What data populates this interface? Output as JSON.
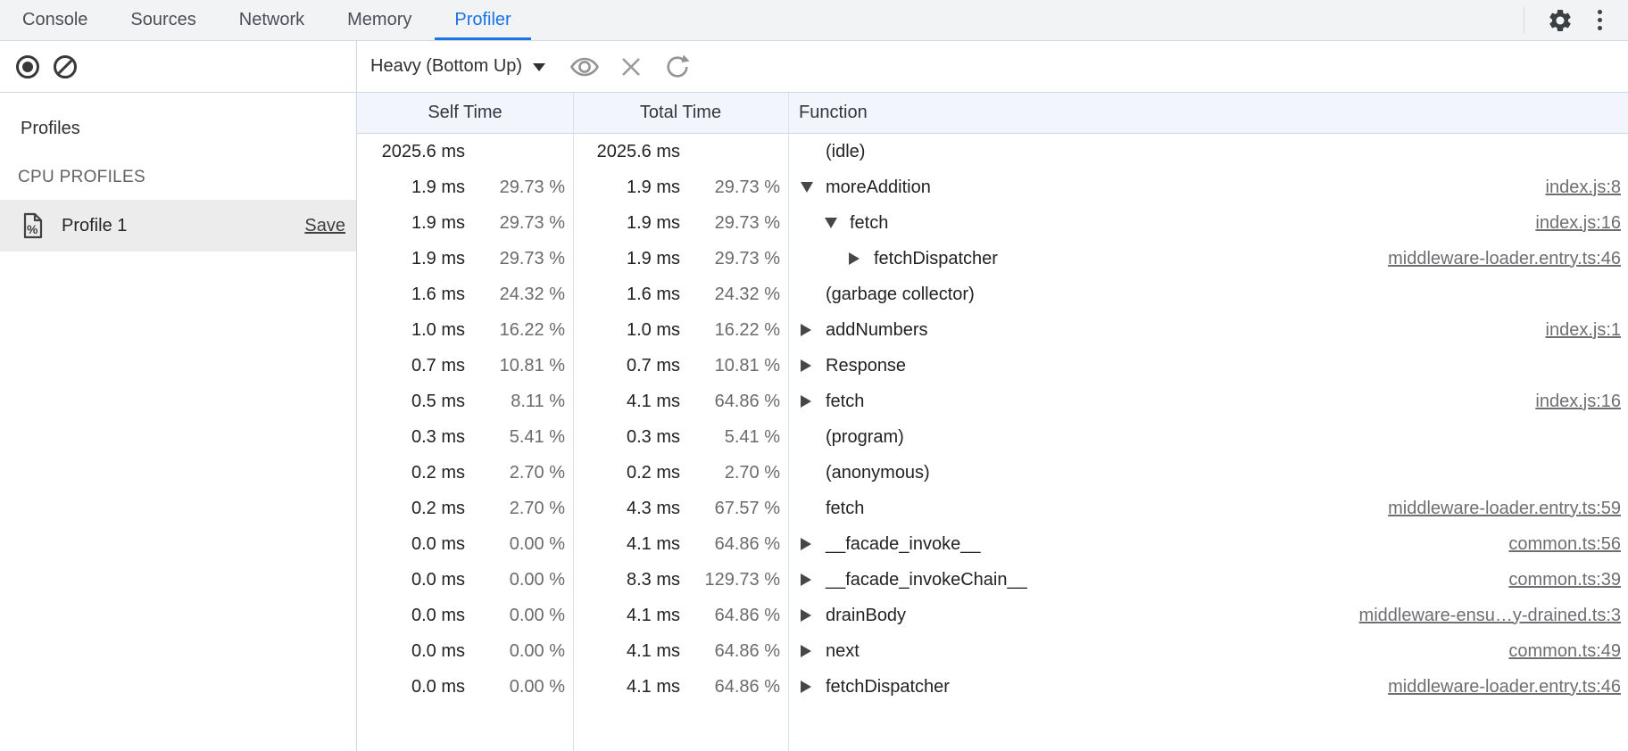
{
  "colors": {
    "accent": "#1a73e8",
    "header_bg": "#f2f5fc",
    "tabbar_bg": "#f1f3f5",
    "selected_row_bg": "#ececec"
  },
  "tabbar": {
    "tabs": [
      {
        "label": "Console"
      },
      {
        "label": "Sources"
      },
      {
        "label": "Network"
      },
      {
        "label": "Memory"
      },
      {
        "label": "Profiler"
      }
    ],
    "active_tab": "Profiler"
  },
  "sidebar": {
    "heading": "Profiles",
    "section_label": "CPU PROFILES",
    "profiles": [
      {
        "name": "Profile 1",
        "action": "Save"
      }
    ]
  },
  "toolbar": {
    "profile_view": "Heavy (Bottom Up)"
  },
  "table": {
    "headers": {
      "self": "Self Time",
      "total": "Total Time",
      "fn": "Function"
    },
    "rows": [
      {
        "self": "2025.6 ms",
        "self_pct": "",
        "total": "2025.6 ms",
        "total_pct": "",
        "arrow": "none",
        "level": 0,
        "fn": "(idle)",
        "link": ""
      },
      {
        "self": "1.9 ms",
        "self_pct": "29.73 %",
        "total": "1.9 ms",
        "total_pct": "29.73 %",
        "arrow": "down",
        "level": 0,
        "fn": "moreAddition",
        "link": "index.js:8"
      },
      {
        "self": "1.9 ms",
        "self_pct": "29.73 %",
        "total": "1.9 ms",
        "total_pct": "29.73 %",
        "arrow": "down",
        "level": 1,
        "fn": "fetch",
        "link": "index.js:16"
      },
      {
        "self": "1.9 ms",
        "self_pct": "29.73 %",
        "total": "1.9 ms",
        "total_pct": "29.73 %",
        "arrow": "right",
        "level": 2,
        "fn": "fetchDispatcher",
        "link": "middleware-loader.entry.ts:46"
      },
      {
        "self": "1.6 ms",
        "self_pct": "24.32 %",
        "total": "1.6 ms",
        "total_pct": "24.32 %",
        "arrow": "none",
        "level": 0,
        "fn": "(garbage collector)",
        "link": ""
      },
      {
        "self": "1.0 ms",
        "self_pct": "16.22 %",
        "total": "1.0 ms",
        "total_pct": "16.22 %",
        "arrow": "right",
        "level": 0,
        "fn": "addNumbers",
        "link": "index.js:1"
      },
      {
        "self": "0.7 ms",
        "self_pct": "10.81 %",
        "total": "0.7 ms",
        "total_pct": "10.81 %",
        "arrow": "right",
        "level": 0,
        "fn": "Response",
        "link": ""
      },
      {
        "self": "0.5 ms",
        "self_pct": "8.11 %",
        "total": "4.1 ms",
        "total_pct": "64.86 %",
        "arrow": "right",
        "level": 0,
        "fn": "fetch",
        "link": "index.js:16"
      },
      {
        "self": "0.3 ms",
        "self_pct": "5.41 %",
        "total": "0.3 ms",
        "total_pct": "5.41 %",
        "arrow": "none",
        "level": 0,
        "fn": "(program)",
        "link": ""
      },
      {
        "self": "0.2 ms",
        "self_pct": "2.70 %",
        "total": "0.2 ms",
        "total_pct": "2.70 %",
        "arrow": "none",
        "level": 0,
        "fn": "(anonymous)",
        "link": ""
      },
      {
        "self": "0.2 ms",
        "self_pct": "2.70 %",
        "total": "4.3 ms",
        "total_pct": "67.57 %",
        "arrow": "none",
        "level": 0,
        "fn": "fetch",
        "link": "middleware-loader.entry.ts:59"
      },
      {
        "self": "0.0 ms",
        "self_pct": "0.00 %",
        "total": "4.1 ms",
        "total_pct": "64.86 %",
        "arrow": "right",
        "level": 0,
        "fn": "__facade_invoke__",
        "link": "common.ts:56"
      },
      {
        "self": "0.0 ms",
        "self_pct": "0.00 %",
        "total": "8.3 ms",
        "total_pct": "129.73 %",
        "arrow": "right",
        "level": 0,
        "fn": "__facade_invokeChain__",
        "link": "common.ts:39"
      },
      {
        "self": "0.0 ms",
        "self_pct": "0.00 %",
        "total": "4.1 ms",
        "total_pct": "64.86 %",
        "arrow": "right",
        "level": 0,
        "fn": "drainBody",
        "link": "middleware-ensu…y-drained.ts:3"
      },
      {
        "self": "0.0 ms",
        "self_pct": "0.00 %",
        "total": "4.1 ms",
        "total_pct": "64.86 %",
        "arrow": "right",
        "level": 0,
        "fn": "next",
        "link": "common.ts:49"
      },
      {
        "self": "0.0 ms",
        "self_pct": "0.00 %",
        "total": "4.1 ms",
        "total_pct": "64.86 %",
        "arrow": "right",
        "level": 0,
        "fn": "fetchDispatcher",
        "link": "middleware-loader.entry.ts:46"
      }
    ]
  }
}
